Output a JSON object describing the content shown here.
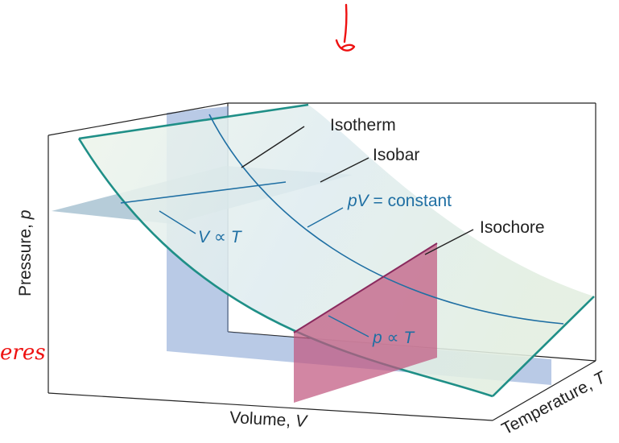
{
  "labels": {
    "isotherm": "Isotherm",
    "isobar": "Isobar",
    "isochore": "Isochore",
    "pv_constant_pv": "pV",
    "pv_constant_rest": " = constant",
    "v_prop_t_v": "V",
    "v_prop_t_rest": " ∝ ",
    "v_prop_t_t": "T",
    "p_prop_t_p": "p",
    "p_prop_t_rest": " ∝ ",
    "p_prop_t_t": "T"
  },
  "axes": {
    "pressure_name": "Pressure, ",
    "pressure_symbol": "p",
    "volume_name": "Volume, ",
    "volume_symbol": "V",
    "temperature_name": "Temperature, ",
    "temperature_symbol": "T"
  },
  "annotations": {
    "handwritten_left": "eres"
  },
  "colors": {
    "surface": "#e3efe6",
    "surface_edge": "#1f8f87",
    "isobar_plane": "#8fb0c4",
    "isochore_plane": "#c0577f",
    "isotherm_plane": "#7f9fd2",
    "curve": "#1f6fa3",
    "box": "#222222",
    "ink": "#ee1111"
  }
}
